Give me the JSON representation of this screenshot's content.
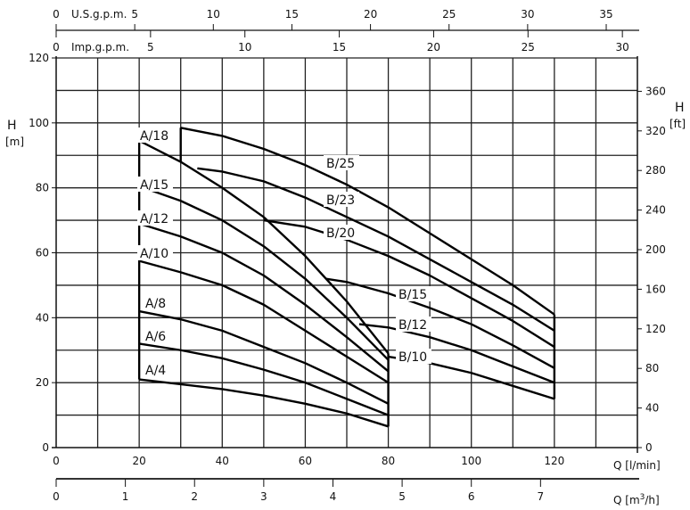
{
  "chart_data": {
    "type": "line",
    "title": "",
    "xlabel": "Q [l/min]",
    "ylabel": "H [m]",
    "ylabel_right": "H [ft]",
    "xlim": [
      0,
      140
    ],
    "ylim": [
      0,
      120
    ],
    "grid": true,
    "x_ticks": [
      0,
      20,
      40,
      60,
      80,
      100,
      120
    ],
    "y_ticks": [
      0,
      20,
      40,
      60,
      80,
      100,
      120
    ],
    "y_right_ticks": [
      0,
      40,
      80,
      120,
      160,
      200,
      240,
      280,
      320,
      360
    ],
    "y_left_unit_line1": "H",
    "y_left_unit_line2": "[m]",
    "y_right_unit_line1": "H",
    "y_right_unit_line2": "[ft]",
    "x_unit_label": "Q [l/min]",
    "secondary_axes": {
      "us_gpm": {
        "label": "U.S.g.p.m.",
        "ticks": [
          0,
          5,
          10,
          15,
          20,
          25,
          30,
          35
        ]
      },
      "imp_gpm": {
        "label": "Imp.g.p.m.",
        "ticks": [
          0,
          5,
          10,
          15,
          20,
          25,
          30
        ]
      },
      "m3h": {
        "label_prefix": "Q [m",
        "label_sup": "3",
        "label_suffix": "/h]",
        "ticks": [
          0,
          1,
          2,
          3,
          4,
          5,
          6,
          7
        ]
      }
    },
    "series": [
      {
        "name": "A/18",
        "points": [
          [
            20,
            94.5
          ],
          [
            30,
            88
          ],
          [
            40,
            80
          ],
          [
            50,
            71
          ],
          [
            60,
            59
          ],
          [
            70,
            45
          ],
          [
            80,
            29
          ]
        ]
      },
      {
        "name": "A/15",
        "points": [
          [
            20,
            80.5
          ],
          [
            30,
            76
          ],
          [
            40,
            70
          ],
          [
            50,
            62
          ],
          [
            60,
            52
          ],
          [
            70,
            40
          ],
          [
            80,
            27
          ]
        ]
      },
      {
        "name": "A/12",
        "points": [
          [
            20,
            69
          ],
          [
            30,
            65
          ],
          [
            40,
            60
          ],
          [
            50,
            53
          ],
          [
            60,
            44
          ],
          [
            70,
            34
          ],
          [
            80,
            23.5
          ]
        ]
      },
      {
        "name": "A/10",
        "points": [
          [
            20,
            57.5
          ],
          [
            30,
            54
          ],
          [
            40,
            50
          ],
          [
            50,
            44
          ],
          [
            60,
            36
          ],
          [
            70,
            28
          ],
          [
            80,
            20
          ]
        ]
      },
      {
        "name": "A/8",
        "points": [
          [
            20,
            42
          ],
          [
            30,
            39.5
          ],
          [
            40,
            36
          ],
          [
            50,
            31
          ],
          [
            60,
            26
          ],
          [
            70,
            20
          ],
          [
            80,
            13.5
          ]
        ]
      },
      {
        "name": "A/6",
        "points": [
          [
            20,
            32
          ],
          [
            30,
            30
          ],
          [
            40,
            27.5
          ],
          [
            50,
            24
          ],
          [
            60,
            20
          ],
          [
            70,
            15
          ],
          [
            80,
            10
          ]
        ]
      },
      {
        "name": "A/4",
        "points": [
          [
            20,
            21
          ],
          [
            30,
            19.5
          ],
          [
            40,
            18
          ],
          [
            50,
            16
          ],
          [
            60,
            13.5
          ],
          [
            70,
            10.5
          ],
          [
            80,
            6.5
          ]
        ]
      },
      {
        "name": "B/25",
        "points": [
          [
            30,
            98.5
          ],
          [
            40,
            96
          ],
          [
            50,
            92
          ],
          [
            60,
            87
          ],
          [
            70,
            81
          ],
          [
            80,
            74
          ],
          [
            90,
            66
          ],
          [
            100,
            58
          ],
          [
            110,
            50
          ],
          [
            120,
            41
          ]
        ]
      },
      {
        "name": "B/23",
        "points": [
          [
            34,
            86
          ],
          [
            40,
            85
          ],
          [
            50,
            82
          ],
          [
            60,
            77
          ],
          [
            70,
            71
          ],
          [
            80,
            65
          ],
          [
            90,
            58
          ],
          [
            100,
            51
          ],
          [
            110,
            44
          ],
          [
            120,
            36
          ]
        ]
      },
      {
        "name": "B/20",
        "points": [
          [
            50,
            70
          ],
          [
            60,
            68
          ],
          [
            70,
            64
          ],
          [
            80,
            59
          ],
          [
            90,
            53
          ],
          [
            100,
            46
          ],
          [
            110,
            39
          ],
          [
            120,
            31
          ]
        ]
      },
      {
        "name": "B/15",
        "points": [
          [
            65,
            52
          ],
          [
            70,
            51
          ],
          [
            80,
            47.5
          ],
          [
            90,
            43
          ],
          [
            100,
            38
          ],
          [
            110,
            31.5
          ],
          [
            120,
            24.5
          ]
        ]
      },
      {
        "name": "B/12",
        "points": [
          [
            73,
            38
          ],
          [
            80,
            37
          ],
          [
            90,
            34
          ],
          [
            100,
            30
          ],
          [
            110,
            25
          ],
          [
            120,
            20
          ]
        ]
      },
      {
        "name": "B/10",
        "points": [
          [
            80,
            28
          ],
          [
            90,
            26
          ],
          [
            100,
            23
          ],
          [
            110,
            19
          ],
          [
            120,
            15
          ]
        ]
      }
    ]
  }
}
